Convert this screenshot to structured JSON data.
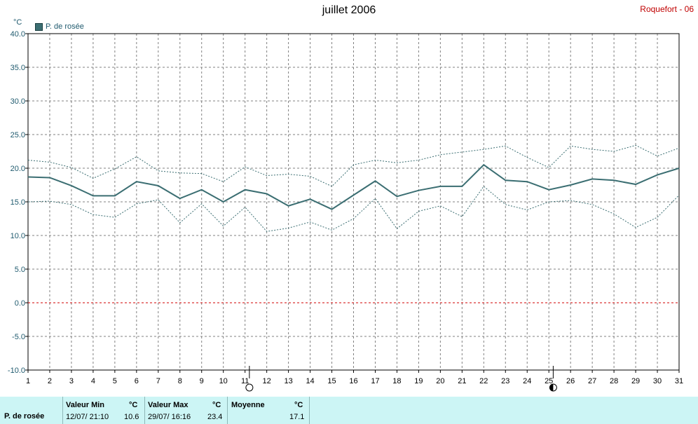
{
  "title": "juillet 2006",
  "station": "Roquefort - 06",
  "unit": "°C",
  "legend": {
    "label": "P. de rosée",
    "color": "#3b6e72"
  },
  "stats": {
    "row_label": "P. de rosée",
    "min": {
      "label": "Valeur Min",
      "unit": "°C",
      "datetime": "12/07/  21:10",
      "value": "10.6"
    },
    "max": {
      "label": "Valeur Max",
      "unit": "°C",
      "datetime": "29/07/  16:16",
      "value": "23.4"
    },
    "mean": {
      "label": "Moyenne",
      "unit": "°C",
      "value": "17.1"
    }
  },
  "chart_data": {
    "type": "line",
    "ylim": [
      -10,
      40
    ],
    "yticks": [
      "40.0",
      "35.0",
      "30.0",
      "25.0",
      "20.0",
      "15.0",
      "10.0",
      "5.0",
      "0.0",
      "-5.0",
      "-10.0"
    ],
    "x": [
      1,
      2,
      3,
      4,
      5,
      6,
      7,
      8,
      9,
      10,
      11,
      12,
      13,
      14,
      15,
      16,
      17,
      18,
      19,
      20,
      21,
      22,
      23,
      24,
      25,
      26,
      27,
      28,
      29,
      30,
      31
    ],
    "series": [
      {
        "name": "P. de rosée",
        "style": "solid",
        "color": "#3b6e72",
        "values": [
          18.7,
          18.6,
          17.4,
          15.9,
          15.9,
          18.0,
          17.4,
          15.5,
          16.8,
          15.0,
          16.8,
          16.2,
          14.4,
          15.4,
          13.9,
          16.0,
          18.1,
          15.8,
          16.7,
          17.3,
          17.3,
          20.5,
          18.2,
          18.0,
          16.8,
          17.5,
          18.4,
          18.2,
          17.6,
          19.0,
          20.0
        ]
      },
      {
        "style": "dotted",
        "color": "#3b6e72",
        "values": [
          21.2,
          20.9,
          20.1,
          18.5,
          19.9,
          21.7,
          19.6,
          19.3,
          19.2,
          18.0,
          20.2,
          18.9,
          19.1,
          18.8,
          17.3,
          20.5,
          21.2,
          20.8,
          21.2,
          22.0,
          22.4,
          22.8,
          23.3,
          21.6,
          20.1,
          23.3,
          22.8,
          22.5,
          23.4,
          21.8,
          23.0
        ]
      },
      {
        "style": "dotted",
        "color": "#3b6e72",
        "values": [
          15.0,
          15.1,
          14.6,
          13.1,
          12.7,
          14.7,
          15.3,
          11.9,
          14.7,
          11.4,
          14.2,
          10.6,
          11.1,
          12.0,
          10.8,
          12.5,
          15.5,
          11.0,
          13.6,
          14.4,
          12.8,
          17.3,
          14.6,
          13.8,
          15.0,
          15.2,
          14.6,
          13.2,
          11.2,
          12.7,
          16.0
        ]
      }
    ],
    "reference_line": {
      "value": 0,
      "color": "#d00000",
      "style": "dashed"
    },
    "moon_phases": [
      {
        "day": 11.2,
        "phase": "full"
      },
      {
        "day": 25.2,
        "phase": "last-quarter"
      }
    ],
    "grid": true
  }
}
